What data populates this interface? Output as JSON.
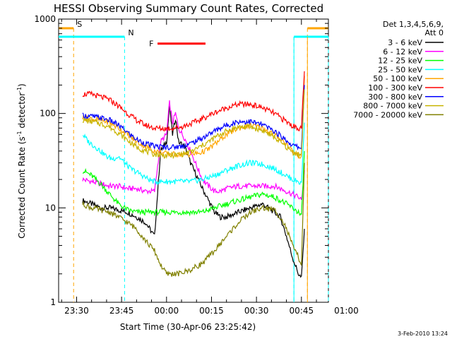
{
  "chart_data": {
    "type": "line",
    "title": "HESSI Observing Summary Count Rates, Corrected",
    "xlabel": "Start Time (30-Apr-06 23:25:42)",
    "ylabel_main": "Corrected Count Rate (s",
    "ylabel_sup1": "-1",
    "ylabel_mid": " detector",
    "ylabel_sup2": "-1",
    "ylabel_end": ")",
    "y_scale": "log",
    "ylim": [
      1,
      1000
    ],
    "xlim_minutes": [
      -36,
      54
    ],
    "x_ticks": [
      {
        "label": "23:30",
        "m": -30
      },
      {
        "label": "23:45",
        "m": -15
      },
      {
        "label": "00:00",
        "m": 0
      },
      {
        "label": "00:15",
        "m": 15
      },
      {
        "label": "00:30",
        "m": 30
      },
      {
        "label": "00:45",
        "m": 45
      },
      {
        "label": "01:00",
        "m": 60
      }
    ],
    "y_ticks": [
      {
        "label": "1",
        "v": 1
      },
      {
        "label": "10",
        "v": 10
      },
      {
        "label": "100",
        "v": 100
      },
      {
        "label": "1000",
        "v": 1000
      }
    ],
    "legend_header": [
      "Det 1,3,4,5,6,9,",
      "Att 0"
    ],
    "series": [
      {
        "name": "3 - 6 keV",
        "color": "#000000",
        "x": [
          -28,
          -25,
          -22,
          -19,
          -16,
          -13,
          -10,
          -7,
          -4,
          -2,
          0,
          1,
          2,
          3,
          4,
          6,
          8,
          10,
          12,
          14,
          16,
          18,
          20,
          24,
          28,
          32,
          36,
          38,
          40,
          42,
          44,
          45,
          46
        ],
        "y": [
          12,
          11,
          10,
          10,
          9.5,
          9,
          8,
          7,
          5,
          40,
          50,
          120,
          60,
          90,
          50,
          45,
          30,
          22,
          16,
          12,
          9,
          8,
          8,
          9,
          10,
          11,
          9,
          8,
          5,
          3,
          2,
          1.8,
          6
        ]
      },
      {
        "name": "6 - 12 keV",
        "color": "#ff00ff",
        "x": [
          -28,
          -25,
          -22,
          -19,
          -16,
          -13,
          -10,
          -7,
          -4,
          -2,
          0,
          1,
          2,
          3,
          4,
          6,
          8,
          10,
          12,
          14,
          16,
          18,
          20,
          24,
          28,
          32,
          36,
          38,
          40,
          42,
          44,
          45,
          46
        ],
        "y": [
          20,
          19,
          18,
          17,
          17,
          16,
          16,
          15,
          15,
          50,
          60,
          130,
          80,
          100,
          70,
          55,
          40,
          28,
          20,
          17,
          15,
          15,
          16,
          17,
          17,
          17,
          17,
          16,
          15,
          14,
          13,
          12,
          25
        ]
      },
      {
        "name": "12 - 25 keV",
        "color": "#00ff00",
        "x": [
          -28,
          -25,
          -22,
          -19,
          -16,
          -13,
          -10,
          -7,
          -4,
          -2,
          0,
          4,
          8,
          12,
          16,
          20,
          24,
          28,
          32,
          36,
          38,
          40,
          42,
          44,
          45,
          46
        ],
        "y": [
          25,
          22,
          18,
          14,
          11,
          9.5,
          9,
          9,
          9,
          9,
          9,
          9,
          9,
          9,
          10,
          11,
          12,
          13,
          14,
          13,
          12,
          11,
          10,
          9,
          8,
          40
        ]
      },
      {
        "name": "25 - 50 keV",
        "color": "#00ffff",
        "x": [
          -28,
          -26,
          -24,
          -22,
          -20,
          -18,
          -16,
          -14,
          -12,
          -10,
          -8,
          -6,
          -4,
          -2,
          0,
          4,
          8,
          12,
          16,
          20,
          24,
          28,
          32,
          36,
          40,
          42,
          44,
          45,
          46
        ],
        "y": [
          60,
          50,
          45,
          40,
          35,
          33,
          35,
          30,
          26,
          24,
          22,
          20,
          19,
          19,
          19,
          19,
          19,
          20,
          22,
          25,
          28,
          30,
          29,
          26,
          22,
          20,
          19,
          18,
          80
        ]
      },
      {
        "name": "50 - 100 keV",
        "color": "#ffa500",
        "x": [
          -28,
          -25,
          -22,
          -19,
          -16,
          -13,
          -10,
          -7,
          -4,
          -1,
          2,
          5,
          8,
          11,
          14,
          17,
          20,
          24,
          28,
          32,
          36,
          40,
          42,
          44,
          45,
          46
        ],
        "y": [
          90,
          88,
          85,
          80,
          70,
          60,
          50,
          45,
          40,
          38,
          37,
          37,
          37,
          38,
          42,
          50,
          60,
          70,
          75,
          70,
          60,
          48,
          40,
          36,
          35,
          250
        ]
      },
      {
        "name": "100 - 300 keV",
        "color": "#ff0000",
        "x": [
          -28,
          -25,
          -22,
          -19,
          -16,
          -13,
          -10,
          -7,
          -4,
          -1,
          2,
          5,
          8,
          11,
          14,
          17,
          20,
          24,
          28,
          32,
          36,
          40,
          42,
          44,
          45,
          46
        ],
        "y": [
          160,
          160,
          150,
          140,
          120,
          100,
          85,
          75,
          70,
          69,
          70,
          72,
          78,
          85,
          95,
          105,
          115,
          125,
          125,
          115,
          100,
          82,
          74,
          70,
          70,
          280
        ]
      },
      {
        "name": "300 - 800 keV",
        "color": "#0000ff",
        "x": [
          -28,
          -25,
          -22,
          -19,
          -16,
          -13,
          -10,
          -7,
          -4,
          -1,
          2,
          5,
          8,
          11,
          14,
          17,
          20,
          24,
          28,
          32,
          36,
          40,
          42,
          44,
          45,
          46
        ],
        "y": [
          95,
          93,
          90,
          85,
          75,
          63,
          53,
          48,
          45,
          44,
          44,
          45,
          48,
          53,
          60,
          68,
          75,
          82,
          82,
          76,
          65,
          52,
          46,
          44,
          43,
          200
        ]
      },
      {
        "name": "800 - 7000 keV",
        "color": "#c8b400",
        "x": [
          -28,
          -25,
          -22,
          -19,
          -16,
          -13,
          -10,
          -7,
          -4,
          -1,
          2,
          5,
          8,
          11,
          14,
          17,
          20,
          24,
          28,
          32,
          36,
          40,
          42,
          44,
          45,
          46
        ],
        "y": [
          85,
          82,
          78,
          72,
          62,
          52,
          44,
          40,
          37,
          36,
          36,
          37,
          39,
          44,
          50,
          58,
          65,
          72,
          72,
          66,
          56,
          44,
          39,
          37,
          36,
          180
        ]
      },
      {
        "name": "7000 - 20000 keV",
        "color": "#808000",
        "x": [
          -28,
          -25,
          -22,
          -19,
          -16,
          -13,
          -10,
          -7,
          -4,
          -2,
          0,
          4,
          8,
          12,
          16,
          20,
          24,
          28,
          32,
          36,
          38,
          40,
          42,
          44,
          45,
          46
        ],
        "y": [
          11,
          10,
          9.5,
          9,
          8,
          7,
          6,
          4.5,
          3.5,
          2.5,
          2,
          2,
          2.2,
          2.6,
          3.5,
          5,
          7,
          9,
          10,
          9.5,
          8,
          6,
          4,
          3,
          2.5,
          30
        ]
      }
    ],
    "flags": [
      {
        "label": "S",
        "color": "#ffa500",
        "line_style": "dashed",
        "bar_y": 800,
        "segments_minutes": [
          [
            -36,
            -31
          ],
          [
            47,
            54
          ]
        ],
        "boundaries_minutes": [
          -31,
          47
        ]
      },
      {
        "label": "N",
        "color": "#00ffff",
        "line_style": "dashed",
        "bar_y": 650,
        "segments_minutes": [
          [
            -36,
            -14
          ],
          [
            42.5,
            54
          ]
        ],
        "boundaries_minutes": [
          -14,
          42.5,
          54
        ]
      },
      {
        "label": "F",
        "color": "#ff0000",
        "line_style": "none",
        "bar_y": 550,
        "segments_minutes": [
          [
            -3,
            13
          ]
        ],
        "boundaries_minutes": []
      }
    ],
    "vertical_lines": [
      {
        "m": 42.5,
        "color": "#00ffff"
      },
      {
        "m": 47,
        "color": "#ffa500"
      }
    ],
    "footer_date": "3-Feb-2010 13:24"
  }
}
